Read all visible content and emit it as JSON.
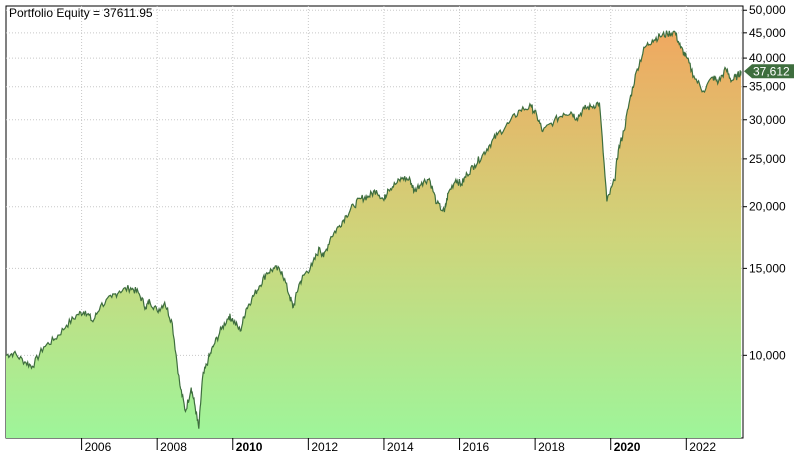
{
  "chart_data": {
    "type": "area",
    "title": "Portfolio Equity = 37611.95",
    "last_value_label": "37,612",
    "y_scale": "log",
    "ylim": [
      6800,
      51000
    ],
    "y_ticks": [
      {
        "value": 50000,
        "label": "50,000"
      },
      {
        "value": 45000,
        "label": "45,000"
      },
      {
        "value": 40000,
        "label": "40,000"
      },
      {
        "value": 35000,
        "label": "35,000"
      },
      {
        "value": 30000,
        "label": "30,000"
      },
      {
        "value": 25000,
        "label": "25,000"
      },
      {
        "value": 20000,
        "label": "20,000"
      },
      {
        "value": 15000,
        "label": "15,000"
      },
      {
        "value": 10000,
        "label": "10,000"
      }
    ],
    "xlim": [
      2004.0,
      2023.5
    ],
    "x_ticks": [
      {
        "value": 2006,
        "label": "2006",
        "bold": false
      },
      {
        "value": 2008,
        "label": "2008",
        "bold": false
      },
      {
        "value": 2010,
        "label": "2010",
        "bold": true
      },
      {
        "value": 2012,
        "label": "2012",
        "bold": false
      },
      {
        "value": 2014,
        "label": "2014",
        "bold": false
      },
      {
        "value": 2016,
        "label": "2016",
        "bold": false
      },
      {
        "value": 2018,
        "label": "2018",
        "bold": false
      },
      {
        "value": 2020,
        "label": "2020",
        "bold": true
      },
      {
        "value": 2022,
        "label": "2022",
        "bold": false
      }
    ],
    "grid": true,
    "colors": {
      "line": "#3e6e3e",
      "fill_top": "#f0a860",
      "fill_mid": "#cfd47a",
      "fill_bottom": "#9ef59a",
      "badge": "#3e6e3e",
      "grid": "#c8c8c8"
    },
    "series": [
      {
        "x": [
          2004.0,
          2004.2,
          2004.5,
          2004.7,
          2005.0,
          2005.3,
          2005.6,
          2005.9,
          2006.1,
          2006.3,
          2006.5,
          2006.8,
          2007.0,
          2007.3,
          2007.5,
          2007.7,
          2007.8,
          2008.0,
          2008.2,
          2008.4,
          2008.6,
          2008.75,
          2008.9,
          2009.0,
          2009.1,
          2009.2,
          2009.35,
          2009.5,
          2009.7,
          2009.9,
          2010.0,
          2010.2,
          2010.35,
          2010.5,
          2010.7,
          2010.9,
          2011.1,
          2011.3,
          2011.5,
          2011.6,
          2011.75,
          2011.9,
          2012.1,
          2012.3,
          2012.4,
          2012.6,
          2012.8,
          2013.0,
          2013.2,
          2013.4,
          2013.6,
          2013.8,
          2014.0,
          2014.1,
          2014.3,
          2014.5,
          2014.7,
          2014.8,
          2015.0,
          2015.2,
          2015.4,
          2015.6,
          2015.7,
          2015.9,
          2016.05,
          2016.2,
          2016.4,
          2016.6,
          2016.8,
          2017.0,
          2017.3,
          2017.6,
          2017.9,
          2018.05,
          2018.2,
          2018.5,
          2018.75,
          2018.95,
          2019.1,
          2019.3,
          2019.5,
          2019.7,
          2019.9,
          2020.1,
          2020.2,
          2020.35,
          2020.5,
          2020.7,
          2020.9,
          2021.1,
          2021.3,
          2021.5,
          2021.7,
          2021.85,
          2022.0,
          2022.2,
          2022.45,
          2022.7,
          2022.85,
          2023.05,
          2023.2,
          2023.35,
          2023.45
        ],
        "values": [
          10000,
          10100,
          9700,
          9500,
          10400,
          10800,
          11500,
          12100,
          12300,
          11700,
          12600,
          13100,
          13500,
          13700,
          13400,
          12500,
          12900,
          12300,
          12800,
          11600,
          8700,
          7700,
          8600,
          7900,
          7100,
          9000,
          9800,
          10500,
          11300,
          12000,
          11800,
          11200,
          12400,
          13000,
          13800,
          14700,
          15000,
          14800,
          13200,
          12500,
          13900,
          14600,
          15200,
          16500,
          15800,
          17400,
          18200,
          19200,
          20100,
          20800,
          21000,
          21600,
          20600,
          21700,
          22200,
          22900,
          22600,
          21500,
          22400,
          22800,
          20300,
          19500,
          21300,
          22700,
          22200,
          23300,
          24300,
          25400,
          26700,
          28000,
          29500,
          31400,
          31900,
          30500,
          28400,
          29800,
          30900,
          31100,
          30200,
          31600,
          31900,
          32500,
          20500,
          22600,
          26000,
          28500,
          32800,
          38000,
          42000,
          43500,
          44300,
          44800,
          45200,
          42000,
          40200,
          36800,
          34300,
          36600,
          35800,
          38000,
          36000,
          36800,
          37612
        ]
      }
    ]
  }
}
